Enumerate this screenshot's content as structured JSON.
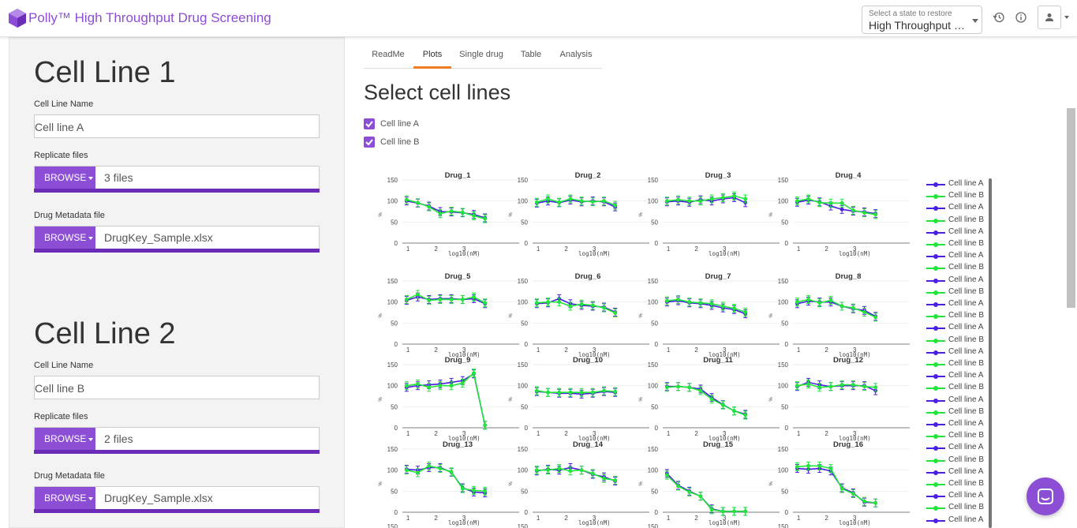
{
  "header": {
    "app_title": "Polly™ High Throughput Drug Screening",
    "state_label": "Select a state to restore",
    "state_value": "High Throughput Drug Screening"
  },
  "sidebar": {
    "cell_lines": [
      {
        "title": "Cell Line 1",
        "name_label": "Cell Line Name",
        "name_value": "Cell line A",
        "replicate_label": "Replicate files",
        "replicate_button": "BROWSE",
        "replicate_value": "3 files",
        "replicate_progress": 1.0,
        "metadata_label": "Drug Metadata file",
        "metadata_button": "BROWSE",
        "metadata_value": "DrugKey_Sample.xlsx",
        "metadata_progress": 1.0
      },
      {
        "title": "Cell Line 2",
        "name_label": "Cell Line Name",
        "name_value": "Cell line B",
        "replicate_label": "Replicate files",
        "replicate_button": "BROWSE",
        "replicate_value": "2 files",
        "replicate_progress": 1.0,
        "metadata_label": "Drug Metadata file",
        "metadata_button": "BROWSE",
        "metadata_value": "DrugKey_Sample.xlsx",
        "metadata_progress": 1.0
      }
    ]
  },
  "tabs": [
    {
      "label": "ReadMe",
      "active": false
    },
    {
      "label": "Plots",
      "active": true
    },
    {
      "label": "Single drug",
      "active": false
    },
    {
      "label": "Table",
      "active": false
    },
    {
      "label": "Analysis",
      "active": false
    }
  ],
  "main": {
    "section_title": "Select cell lines",
    "checkboxes": [
      {
        "label": "Cell line A",
        "checked": true
      },
      {
        "label": "Cell line B",
        "checked": true
      }
    ]
  },
  "colors": {
    "accent": "#8d4ed6",
    "accent_dark": "#6b2cb8",
    "tab_underline": "#f07c28",
    "series_a": "#4b1fe0",
    "series_b": "#22e53a"
  },
  "legend": [
    "Cell line A",
    "Cell line B",
    "Cell line A",
    "Cell line B",
    "Cell line A",
    "Cell line B",
    "Cell line A",
    "Cell line B",
    "Cell line A",
    "Cell line B",
    "Cell line A",
    "Cell line B",
    "Cell line A",
    "Cell line B",
    "Cell line A",
    "Cell line B",
    "Cell line A",
    "Cell line B",
    "Cell line A",
    "Cell line B",
    "Cell line A",
    "Cell line B",
    "Cell line A",
    "Cell line B",
    "Cell line A",
    "Cell line B",
    "Cell line A",
    "Cell line B",
    "Cell line A"
  ],
  "chart_data": {
    "type": "line",
    "xlabel": "log10(nM)",
    "ylabel": "%",
    "x": [
      0.95,
      1.35,
      1.75,
      2.15,
      2.55,
      2.95,
      3.35,
      3.75
    ],
    "xticks": [
      1,
      2,
      3
    ],
    "yticks": [
      0,
      50,
      100,
      150
    ],
    "ylim": [
      0,
      150
    ],
    "panels": [
      {
        "title": "Drug_1",
        "a": [
          100,
          95,
          88,
          75,
          74,
          72,
          68,
          60
        ],
        "b": [
          103,
          96,
          86,
          70,
          76,
          73,
          65,
          58
        ]
      },
      {
        "title": "Drug_2",
        "a": [
          95,
          100,
          96,
          102,
          98,
          100,
          98,
          86
        ],
        "b": [
          97,
          105,
          97,
          105,
          100,
          98,
          100,
          90
        ]
      },
      {
        "title": "Drug_3",
        "a": [
          98,
          100,
          97,
          103,
          100,
          105,
          108,
          96
        ],
        "b": [
          100,
          103,
          100,
          100,
          105,
          108,
          112,
          105
        ]
      },
      {
        "title": "Drug_4",
        "a": [
          97,
          102,
          98,
          88,
          80,
          76,
          74,
          70
        ],
        "b": [
          100,
          105,
          96,
          95,
          95,
          78,
          72,
          68
        ]
      },
      {
        "title": "Drug_5",
        "a": [
          104,
          112,
          106,
          108,
          108,
          106,
          108,
          96
        ],
        "b": [
          106,
          118,
          104,
          106,
          106,
          106,
          112,
          98
        ]
      },
      {
        "title": "Drug_6",
        "a": [
          96,
          98,
          108,
          96,
          92,
          90,
          88,
          76
        ],
        "b": [
          98,
          100,
          100,
          90,
          95,
          92,
          86,
          74
        ]
      },
      {
        "title": "Drug_7",
        "a": [
          100,
          103,
          98,
          96,
          92,
          86,
          82,
          72
        ],
        "b": [
          103,
          106,
          100,
          98,
          96,
          90,
          85,
          76
        ]
      },
      {
        "title": "Drug_8",
        "a": [
          96,
          102,
          100,
          100,
          90,
          84,
          80,
          66
        ],
        "b": [
          100,
          106,
          98,
          104,
          90,
          86,
          76,
          64
        ]
      },
      {
        "title": "Drug_9",
        "a": [
          96,
          100,
          102,
          104,
          108,
          112,
          128,
          6
        ],
        "b": [
          100,
          104,
          96,
          100,
          100,
          106,
          130,
          6
        ]
      },
      {
        "title": "Drug_10",
        "a": [
          86,
          84,
          82,
          82,
          80,
          82,
          86,
          84
        ],
        "b": [
          88,
          84,
          84,
          84,
          84,
          84,
          88,
          86
        ]
      },
      {
        "title": "Drug_11",
        "a": [
          98,
          98,
          96,
          92,
          72,
          55,
          40,
          32
        ],
        "b": [
          96,
          98,
          96,
          88,
          68,
          54,
          40,
          30
        ]
      },
      {
        "title": "Drug_12",
        "a": [
          98,
          108,
          102,
          98,
          100,
          100,
          100,
          88
        ],
        "b": [
          100,
          104,
          96,
          98,
          102,
          102,
          98,
          96
        ]
      },
      {
        "title": "Drug_13",
        "a": [
          102,
          100,
          106,
          106,
          95,
          58,
          48,
          46
        ],
        "b": [
          100,
          94,
          110,
          104,
          96,
          56,
          52,
          50
        ]
      },
      {
        "title": "Drug_14",
        "a": [
          98,
          102,
          100,
          106,
          100,
          90,
          84,
          74
        ],
        "b": [
          100,
          100,
          104,
          98,
          100,
          92,
          80,
          76
        ]
      },
      {
        "title": "Drug_15",
        "a": [
          92,
          64,
          50,
          38,
          8,
          2,
          2,
          2
        ],
        "b": [
          88,
          62,
          48,
          38,
          6,
          2,
          2,
          2
        ]
      },
      {
        "title": "Drug_16",
        "a": [
          104,
          102,
          104,
          98,
          58,
          46,
          24,
          22
        ],
        "b": [
          108,
          110,
          110,
          104,
          56,
          44,
          26,
          22
        ]
      }
    ]
  }
}
